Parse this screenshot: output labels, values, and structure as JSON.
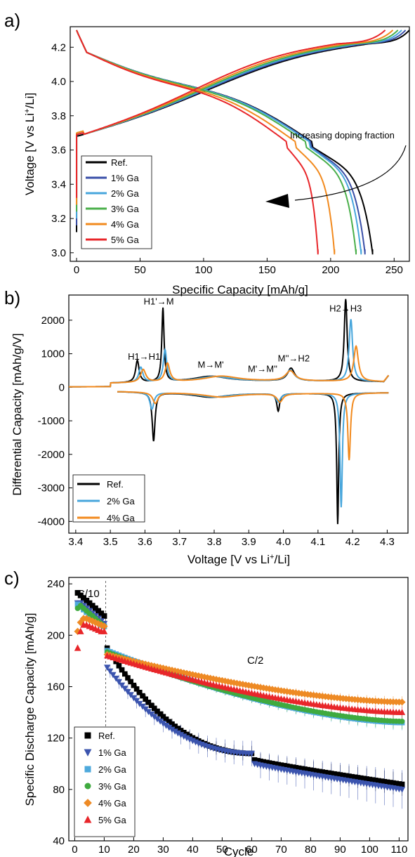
{
  "chart_data": [
    {
      "panel": "a)",
      "type": "line",
      "xlabel": "Specific Capacity [mAh/g]",
      "ylabel_html": [
        "Voltage [V vs Li",
        "+",
        "/Li]"
      ],
      "xlim": [
        -5,
        262
      ],
      "ylim": [
        2.95,
        4.32
      ],
      "xticks": [
        0,
        50,
        100,
        150,
        200,
        250
      ],
      "yticks": [
        3.0,
        3.2,
        3.4,
        3.6,
        3.8,
        4.0,
        4.2
      ],
      "ytick_labels": [
        "3.0",
        "3.2",
        "3.4",
        "3.6",
        "3.8",
        "4.0",
        "4.2"
      ],
      "legend_position": "bottom-left",
      "annotation": "Increasing doping fraction",
      "series": [
        {
          "name": "Ref.",
          "color": "#000000",
          "charge_end": 262,
          "charge_plateau": 230,
          "discharge_end": 233,
          "discharge_knee": 185,
          "charge_start": 3.68
        },
        {
          "name": "1% Ga",
          "color": "#3a4fa8",
          "charge_end": 259,
          "charge_plateau": 226,
          "discharge_end": 227,
          "discharge_knee": 184,
          "charge_start": 3.69
        },
        {
          "name": "2% Ga",
          "color": "#47a6dc",
          "charge_end": 256,
          "charge_plateau": 222,
          "discharge_end": 224,
          "discharge_knee": 183,
          "charge_start": 3.69
        },
        {
          "name": "3% Ga",
          "color": "#4aaf4a",
          "charge_end": 253,
          "charge_plateau": 218,
          "discharge_end": 220,
          "discharge_knee": 180,
          "charge_start": 3.7
        },
        {
          "name": "4% Ga",
          "color": "#f28a1e",
          "charge_end": 249,
          "charge_plateau": 212,
          "discharge_end": 203,
          "discharge_knee": 172,
          "charge_start": 3.7
        },
        {
          "name": "5% Ga",
          "color": "#e8262a",
          "charge_end": 243,
          "charge_plateau": 205,
          "discharge_end": 190,
          "discharge_knee": 165,
          "charge_start": 3.69
        }
      ]
    },
    {
      "panel": "b)",
      "type": "line",
      "xlabel_html": [
        "Voltage [V vs Li",
        "+",
        "/Li]"
      ],
      "ylabel": "Differential Capacity [mAh/g/V]",
      "xlim": [
        3.38,
        4.36
      ],
      "ylim": [
        -4350,
        2750
      ],
      "xticks": [
        3.4,
        3.5,
        3.6,
        3.7,
        3.8,
        3.9,
        4.0,
        4.1,
        4.2,
        4.3
      ],
      "xtick_labels": [
        "3.4",
        "3.5",
        "3.6",
        "3.7",
        "3.8",
        "3.9",
        "4.0",
        "4.1",
        "4.2",
        "4.3"
      ],
      "yticks": [
        -4000,
        -3000,
        -2000,
        -1000,
        0,
        1000,
        2000
      ],
      "ytick_labels": [
        "-4000",
        "-3000",
        "-2000",
        "-1000",
        "0",
        "1000",
        "2000"
      ],
      "legend_position": "bottom-left",
      "annotations": [
        {
          "text": "H1→H1'",
          "x": 3.6,
          "y": 820
        },
        {
          "text": "H1'→M",
          "x": 3.64,
          "y": 2470
        },
        {
          "text": "M→M'",
          "x": 3.79,
          "y": 580
        },
        {
          "text": "M'→M''",
          "x": 3.94,
          "y": 460
        },
        {
          "text": "M''→H2",
          "x": 4.03,
          "y": 770
        },
        {
          "text": "H2→H3",
          "x": 4.18,
          "y": 2260
        }
      ],
      "series": [
        {
          "name": "Ref.",
          "color": "#000000",
          "charge_peaks": [
            [
              3.578,
              650,
              0.006
            ],
            [
              3.652,
              2200,
              0.004
            ],
            [
              3.79,
              160,
              0.06
            ],
            [
              4.022,
              380,
              0.012
            ],
            [
              4.18,
              2450,
              0.005
            ]
          ],
          "discharge_peaks": [
            [
              3.625,
              -1450,
              0.005
            ],
            [
              3.79,
              -130,
              0.06
            ],
            [
              3.985,
              -520,
              0.005
            ],
            [
              4.157,
              -3900,
              0.0035
            ]
          ]
        },
        {
          "name": "2% Ga",
          "color": "#47a6dc",
          "charge_peaks": [
            [
              3.588,
              450,
              0.007
            ],
            [
              3.658,
              950,
              0.006
            ],
            [
              3.8,
              150,
              0.06
            ],
            [
              4.02,
              320,
              0.014
            ],
            [
              4.195,
              1850,
              0.006
            ]
          ],
          "discharge_peaks": [
            [
              3.62,
              -500,
              0.007
            ],
            [
              3.8,
              -120,
              0.06
            ],
            [
              3.985,
              -250,
              0.008
            ],
            [
              4.167,
              -3400,
              0.004
            ]
          ]
        },
        {
          "name": "4% Ga",
          "color": "#f28a1e",
          "charge_peaks": [
            [
              3.595,
              380,
              0.009
            ],
            [
              3.665,
              550,
              0.008
            ],
            [
              3.82,
              160,
              0.06
            ],
            [
              4.02,
              300,
              0.016
            ],
            [
              4.21,
              1050,
              0.008
            ]
          ],
          "discharge_peaks": [
            [
              3.63,
              -330,
              0.009
            ],
            [
              3.82,
              -120,
              0.06
            ],
            [
              3.99,
              -250,
              0.01
            ],
            [
              4.19,
              -2000,
              0.0045
            ]
          ]
        }
      ]
    },
    {
      "panel": "c)",
      "type": "scatter",
      "xlabel": "Cycle",
      "ylabel": "Specific Discharge Capacity [mAh/g]",
      "xlim": [
        -2,
        113
      ],
      "ylim": [
        40,
        245
      ],
      "xticks": [
        0,
        10,
        20,
        30,
        40,
        50,
        60,
        70,
        80,
        90,
        100,
        110
      ],
      "yticks": [
        40,
        80,
        120,
        160,
        200,
        240
      ],
      "rate_labels": [
        "C/10",
        "C/2"
      ],
      "divider_cycle": 10.5,
      "legend_position": "bottom-left",
      "series": [
        {
          "name": "Ref.",
          "color": "#000000",
          "marker": "square",
          "c10": [
            233,
            231,
            229,
            227,
            225,
            223,
            221,
            219,
            217,
            215
          ],
          "start": 190,
          "end": 84,
          "drop_at": 61,
          "val60": 108,
          "val62": 103,
          "err": 6
        },
        {
          "name": "1% Ga",
          "color": "#3b54ae",
          "marker": "triangle-down",
          "c10": [
            225,
            225,
            223,
            221,
            219,
            217,
            215,
            213,
            211,
            209
          ],
          "start": 175,
          "end": 80,
          "drop_at": 61,
          "val60": 108,
          "val62": 100,
          "err": 10
        },
        {
          "name": "2% Ga",
          "color": "#4ea9dc",
          "marker": "square",
          "c10": [
            224,
            222,
            220,
            218,
            216,
            214,
            212,
            210,
            208,
            207
          ],
          "start": 188,
          "end": 132,
          "drop_at": 0,
          "val60": 148,
          "val62": 148,
          "err": 4
        },
        {
          "name": "3% Ga",
          "color": "#3faa3f",
          "marker": "circle",
          "c10": [
            221,
            223,
            221,
            219,
            217,
            215,
            213,
            211,
            209,
            207
          ],
          "start": 187,
          "end": 133,
          "drop_at": 0,
          "val60": 148,
          "val62": 148,
          "err": 4
        },
        {
          "name": "4% Ga",
          "color": "#ee8a24",
          "marker": "diamond",
          "c10": [
            203,
            210,
            213,
            213,
            212,
            211,
            210,
            209,
            208,
            207
          ],
          "start": 185,
          "end": 148,
          "drop_at": 0,
          "val60": 158,
          "val62": 158,
          "err": 3
        },
        {
          "name": "5% Ga",
          "color": "#e8262a",
          "marker": "triangle-up",
          "c10": [
            190,
            203,
            208,
            208,
            207,
            206,
            205,
            204,
            203,
            203
          ],
          "start": 184,
          "end": 140,
          "drop_at": 0,
          "val60": 152,
          "val62": 152,
          "err": 3
        }
      ]
    }
  ]
}
